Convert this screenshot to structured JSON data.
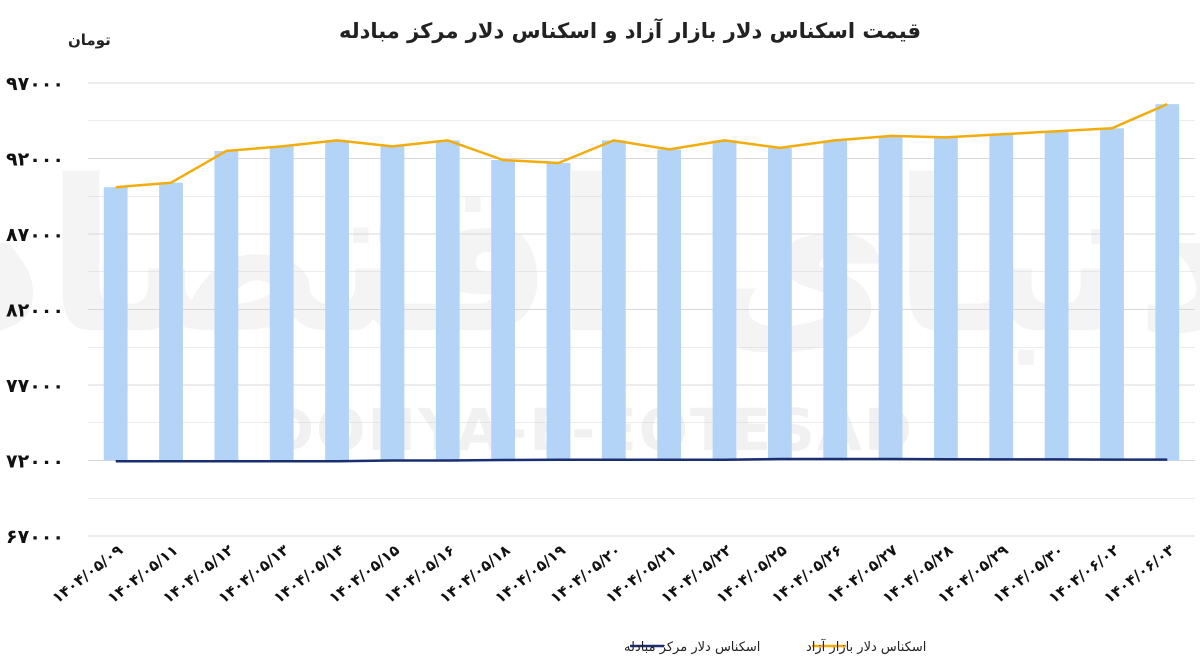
{
  "chart_data": {
    "type": "bar+line",
    "title": "قیمت اسکناس دلار بازار آزاد و اسکناس دلار مرکز مبادله",
    "ylabel": "تومان",
    "ylim": [
      67000,
      97000
    ],
    "yticks": [
      97000,
      92000,
      87000,
      82000,
      77000,
      72000,
      67000
    ],
    "ytick_labels": [
      "۹۷۰۰۰",
      "۹۲۰۰۰",
      "۸۷۰۰۰",
      "۸۲۰۰۰",
      "۷۷۰۰۰",
      "۷۲۰۰۰",
      "۶۷۰۰۰"
    ],
    "categories": [
      "۱۴۰۴/۰۵/۰۹",
      "۱۴۰۴/۰۵/۱۱",
      "۱۴۰۴/۰۵/۱۲",
      "۱۴۰۴/۰۵/۱۳",
      "۱۴۰۴/۰۵/۱۴",
      "۱۴۰۴/۰۵/۱۵",
      "۱۴۰۴/۰۵/۱۶",
      "۱۴۰۴/۰۵/۱۸",
      "۱۴۰۴/۰۵/۱۹",
      "۱۴۰۴/۰۵/۲۰",
      "۱۴۰۴/۰۵/۲۱",
      "۱۴۰۴/۰۵/۲۲",
      "۱۴۰۴/۰۵/۲۵",
      "۱۴۰۴/۰۵/۲۶",
      "۱۴۰۴/۰۵/۲۷",
      "۱۴۰۴/۰۵/۲۸",
      "۱۴۰۴/۰۵/۲۹",
      "۱۴۰۴/۰۵/۳۰",
      "۱۴۰۴/۰۶/۰۲",
      "۱۴۰۴/۰۶/۰۳"
    ],
    "series": [
      {
        "name": "اسکناس دلار بازار آزاد",
        "render": "bar+line",
        "values": [
          90100,
          90400,
          92500,
          92800,
          93200,
          92800,
          93200,
          91900,
          91700,
          93200,
          92600,
          93200,
          92700,
          93200,
          93500,
          93400,
          93600,
          93800,
          94000,
          95600
        ]
      },
      {
        "name": "اسکناس دلار مرکز مبادله",
        "render": "line",
        "values": [
          71950,
          71950,
          71950,
          71950,
          71950,
          72000,
          72000,
          72030,
          72050,
          72050,
          72050,
          72050,
          72100,
          72100,
          72100,
          72080,
          72070,
          72070,
          72060,
          72060
        ]
      }
    ],
    "colors": {
      "bar": "#b4d4f7",
      "free_line": "#f2ac0c",
      "official_line": "#1a2f72",
      "grid": "#d8d8d8"
    },
    "watermark": {
      "latin": "DONYA-E-EQTESAD",
      "arabic": "دنیای اقتصاد"
    },
    "grid": true,
    "legend_position": "bottom"
  }
}
